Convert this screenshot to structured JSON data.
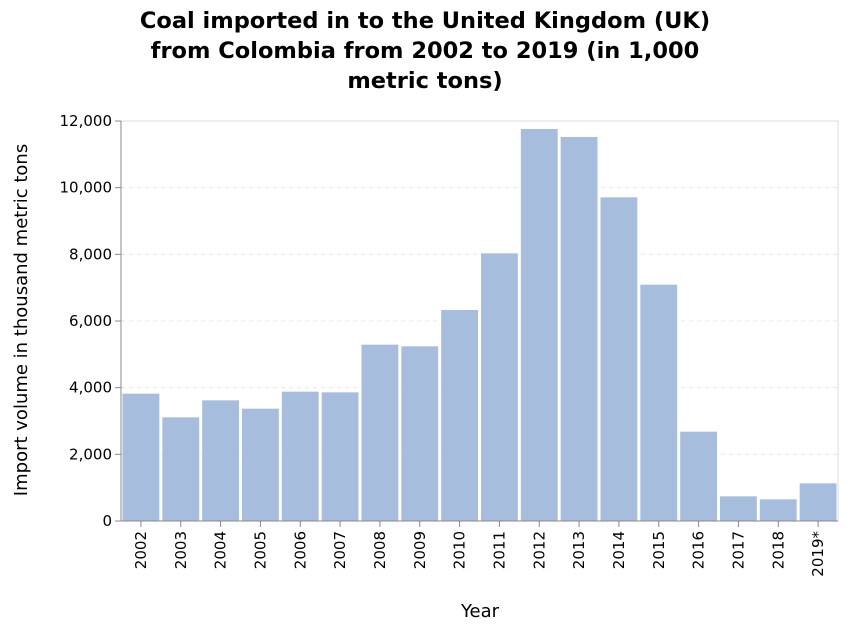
{
  "chart_data": {
    "type": "bar",
    "title_lines": [
      "Coal imported in to the United Kingdom (UK)",
      "from Colombia from 2002 to 2019 (in 1,000",
      "metric tons)"
    ],
    "xlabel": "Year",
    "ylabel": "Import volume in thousand metric tons",
    "categories": [
      "2002",
      "2003",
      "2004",
      "2005",
      "2006",
      "2007",
      "2008",
      "2009",
      "2010",
      "2011",
      "2012",
      "2013",
      "2014",
      "2015",
      "2016",
      "2017",
      "2018",
      "2019*"
    ],
    "values": [
      3820,
      3110,
      3620,
      3370,
      3880,
      3860,
      5290,
      5240,
      6330,
      8030,
      11760,
      11520,
      9710,
      7090,
      2680,
      740,
      650,
      1130
    ],
    "ylim": [
      0,
      12000
    ],
    "yticks": [
      0,
      2000,
      4000,
      6000,
      8000,
      10000,
      12000
    ],
    "ytick_labels": [
      "0",
      "2,000",
      "4,000",
      "6,000",
      "8,000",
      "10,000",
      "12,000"
    ],
    "grid": true,
    "legend": "none",
    "bar_color": "#a7bddd"
  }
}
